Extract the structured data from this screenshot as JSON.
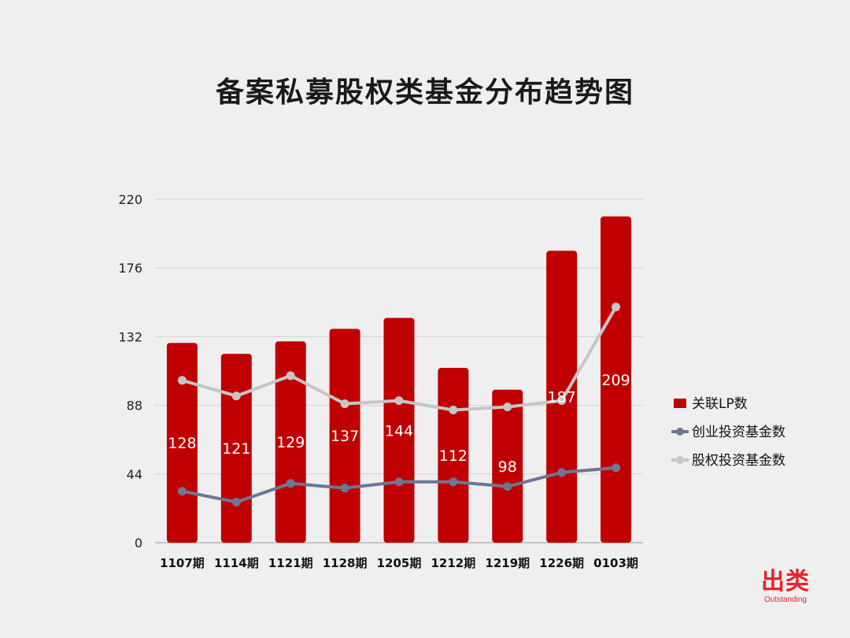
{
  "chart_data": {
    "type": "bar",
    "title": "备案私募股权类基金分布趋势图",
    "categories": [
      "1107期",
      "1114期",
      "1121期",
      "1128期",
      "1205期",
      "1212期",
      "1219期",
      "1226期",
      "0103期"
    ],
    "y_ticks": [
      0,
      44,
      88,
      132,
      176,
      220
    ],
    "ylim": [
      0,
      220
    ],
    "grid": true,
    "legend_position": "right",
    "series": [
      {
        "name": "关联LP数",
        "type": "bar",
        "color": "#c00000",
        "values": [
          128,
          121,
          129,
          137,
          144,
          112,
          98,
          187,
          209
        ],
        "data_labels": [
          "128",
          "121",
          "129",
          "137",
          "144",
          "112",
          "98",
          "187",
          "209"
        ]
      },
      {
        "name": "创业投资基金数",
        "type": "line",
        "color": "#6d7694",
        "values": [
          33,
          26,
          38,
          35,
          39,
          39,
          36,
          45,
          48
        ]
      },
      {
        "name": "股权投资基金数",
        "type": "line",
        "color": "#c6c6c6",
        "values": [
          104,
          94,
          107,
          89,
          91,
          85,
          87,
          91,
          151
        ]
      }
    ]
  },
  "logo": {
    "text": "出类",
    "subtext": "Outstanding"
  }
}
